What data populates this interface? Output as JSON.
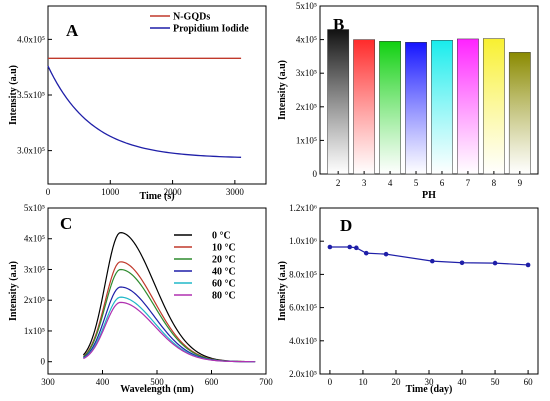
{
  "chart_data": [
    {
      "panel": "A",
      "type": "line",
      "xlabel": "Time (s)",
      "ylabel": "Intensity (a.u)",
      "xlim": [
        0,
        3500
      ],
      "ylim": [
        270000.0,
        430000.0
      ],
      "xticks": [
        "0",
        "1000",
        "2000",
        "3000"
      ],
      "xtick_values": [
        0,
        1000,
        2000,
        3000
      ],
      "yticks": [
        "3.0x10⁵",
        "3.5x10⁵",
        "4.0x10⁵"
      ],
      "ytick_values": [
        300000,
        350000,
        400000
      ],
      "series": [
        {
          "name": "N-GQDs",
          "color": "#c0392b",
          "x": [
            0,
            3100
          ],
          "y": [
            383000,
            383000
          ]
        },
        {
          "name": "Propidium Iodide",
          "color": "#1f1fa8",
          "model": "exp",
          "x_range": [
            0,
            3100
          ],
          "y0": 376000,
          "y_inf": 293000,
          "tau": 700
        }
      ]
    },
    {
      "panel": "B",
      "type": "bar",
      "xlabel": "PH",
      "ylabel": "Intensity (a.u)",
      "ylim": [
        0,
        500000.0
      ],
      "yticks": [
        "0",
        "1x10⁵",
        "2x10⁵",
        "3x10⁵",
        "4x10⁵",
        "5x10⁵"
      ],
      "ytick_values": [
        0,
        100000,
        200000,
        300000,
        400000,
        500000
      ],
      "categories": [
        "2",
        "3",
        "4",
        "5",
        "6",
        "7",
        "8",
        "9"
      ],
      "values": [
        430000,
        400000,
        395000,
        392000,
        398000,
        402000,
        403000,
        362000
      ],
      "colors": [
        "#111111",
        "#ff2a2a",
        "#10d010",
        "#1414ff",
        "#18ecec",
        "#ff22ff",
        "#f8f030",
        "#8a8a00"
      ]
    },
    {
      "panel": "C",
      "type": "line",
      "xlabel": "Wavelength (nm)",
      "ylabel": "Intensity (a.u)",
      "xlim": [
        300,
        700
      ],
      "ylim": [
        -40000,
        500000
      ],
      "xticks": [
        "300",
        "400",
        "500",
        "600",
        "700"
      ],
      "xtick_values": [
        300,
        400,
        500,
        600,
        700
      ],
      "yticks": [
        "0",
        "1x10⁵",
        "2x10⁵",
        "3x10⁵",
        "4x10⁵",
        "5x10⁵"
      ],
      "ytick_values": [
        0,
        100000,
        200000,
        300000,
        400000,
        500000
      ],
      "peak_x": 433,
      "start_x": 365,
      "end_x": 680,
      "series": [
        {
          "name": "0 °C",
          "color": "#000000",
          "peak": 420000
        },
        {
          "name": "10 °C",
          "color": "#c0392b",
          "peak": 325000
        },
        {
          "name": "20 °C",
          "color": "#2e8b2e",
          "peak": 300000
        },
        {
          "name": "40 °C",
          "color": "#1f1fa8",
          "peak": 243000
        },
        {
          "name": "60 °C",
          "color": "#20b8c8",
          "peak": 210000
        },
        {
          "name": "80 °C",
          "color": "#b030b0",
          "peak": 193000
        }
      ]
    },
    {
      "panel": "D",
      "type": "line",
      "xlabel": "Time (day)",
      "ylabel": "Intensity (a.u)",
      "xlim": [
        -3,
        63
      ],
      "ylim": [
        200000.0,
        1200000.0
      ],
      "xticks": [
        "0",
        "10",
        "20",
        "30",
        "40",
        "50",
        "60"
      ],
      "xtick_values": [
        0,
        10,
        20,
        30,
        40,
        50,
        60
      ],
      "yticks": [
        "2.0x10⁵",
        "4.0x10⁵",
        "6.0x10⁵",
        "8.0x10⁵",
        "1.0x10⁶",
        "1.2x10⁶"
      ],
      "ytick_values": [
        200000,
        400000,
        600000,
        800000,
        1000000,
        1200000
      ],
      "series": [
        {
          "name": "",
          "color": "#1f1fa8",
          "x": [
            0,
            6,
            8,
            11,
            17,
            31,
            40,
            50,
            60
          ],
          "y": [
            965000,
            965000,
            960000,
            928000,
            922000,
            880000,
            870000,
            868000,
            857000
          ]
        }
      ]
    }
  ]
}
